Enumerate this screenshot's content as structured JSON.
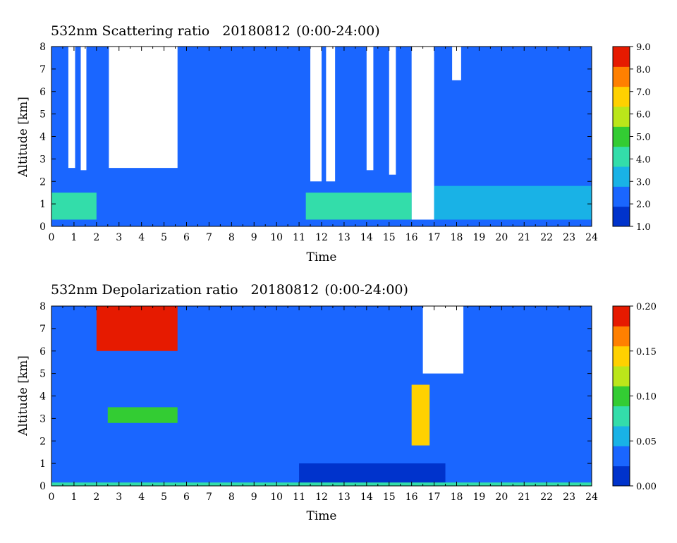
{
  "chart_data": [
    {
      "type": "heatmap",
      "title": "532nm Scattering ratio",
      "date": "20180812",
      "time_range": "(0:00-24:00)",
      "xlabel": "Time",
      "ylabel": "Altitude [km]",
      "xlim": [
        0,
        24
      ],
      "ylim": [
        0,
        8
      ],
      "x_ticks": [
        "0",
        "1",
        "2",
        "3",
        "4",
        "5",
        "6",
        "7",
        "8",
        "9",
        "10",
        "11",
        "12",
        "13",
        "14",
        "15",
        "16",
        "17",
        "18",
        "19",
        "20",
        "21",
        "22",
        "23",
        "24"
      ],
      "y_ticks": [
        "0",
        "1",
        "2",
        "3",
        "4",
        "5",
        "6",
        "7",
        "8"
      ],
      "colorbar": {
        "range": [
          1.0,
          9.0
        ],
        "ticks": [
          "1.0",
          "2.0",
          "3.0",
          "4.0",
          "5.0",
          "6.0",
          "7.0",
          "8.0",
          "9.0"
        ],
        "colors": [
          "#0033cc",
          "#1a66ff",
          "#19b2e6",
          "#33ddaa",
          "#33cc33",
          "#bbe61a",
          "#ffd100",
          "#ff8000",
          "#e61a00"
        ]
      },
      "background_value": 2.0,
      "features": [
        {
          "kind": "cloud_saturated",
          "x": [
            0.75,
            1.05
          ],
          "y": [
            2.6,
            8.0
          ],
          "value": 9.5
        },
        {
          "kind": "cloud_saturated",
          "x": [
            1.3,
            1.55
          ],
          "y": [
            2.5,
            8.0
          ],
          "value": 9.5
        },
        {
          "kind": "cloud_saturated",
          "x": [
            2.55,
            5.6
          ],
          "y": [
            2.6,
            8.0
          ],
          "value": 9.5
        },
        {
          "kind": "cloud_saturated",
          "x": [
            11.5,
            12.0
          ],
          "y": [
            2.0,
            8.0
          ],
          "value": 9.5
        },
        {
          "kind": "cloud_saturated",
          "x": [
            12.2,
            12.6
          ],
          "y": [
            2.0,
            8.0
          ],
          "value": 9.5
        },
        {
          "kind": "cloud_saturated",
          "x": [
            14.0,
            14.3
          ],
          "y": [
            2.5,
            8.0
          ],
          "value": 9.5
        },
        {
          "kind": "cloud_saturated",
          "x": [
            15.0,
            15.3
          ],
          "y": [
            2.3,
            8.0
          ],
          "value": 9.5
        },
        {
          "kind": "cloud_saturated",
          "x": [
            16.0,
            17.0
          ],
          "y": [
            0.3,
            8.0
          ],
          "value": 9.5
        },
        {
          "kind": "cloud_saturated",
          "x": [
            17.8,
            18.2
          ],
          "y": [
            6.5,
            8.0
          ],
          "value": 9.5
        },
        {
          "kind": "aerosol_layer",
          "x": [
            0,
            2.0
          ],
          "y": [
            0.3,
            1.5
          ],
          "value": 4.0
        },
        {
          "kind": "aerosol_layer",
          "x": [
            11.3,
            16.0
          ],
          "y": [
            0.3,
            1.5
          ],
          "value": 4.5
        },
        {
          "kind": "aerosol_layer",
          "x": [
            17.0,
            24.0
          ],
          "y": [
            0.3,
            1.8
          ],
          "value": 3.3
        }
      ]
    },
    {
      "type": "heatmap",
      "title": "532nm Depolarization ratio",
      "date": "20180812",
      "time_range": "(0:00-24:00)",
      "xlabel": "Time",
      "ylabel": "Altitude [km]",
      "xlim": [
        0,
        24
      ],
      "ylim": [
        0,
        8
      ],
      "x_ticks": [
        "0",
        "1",
        "2",
        "3",
        "4",
        "5",
        "6",
        "7",
        "8",
        "9",
        "10",
        "11",
        "12",
        "13",
        "14",
        "15",
        "16",
        "17",
        "18",
        "19",
        "20",
        "21",
        "22",
        "23",
        "24"
      ],
      "y_ticks": [
        "0",
        "1",
        "2",
        "3",
        "4",
        "5",
        "6",
        "7",
        "8"
      ],
      "colorbar": {
        "range": [
          0.0,
          0.2
        ],
        "ticks": [
          "0.00",
          "0.05",
          "0.10",
          "0.15",
          "0.20"
        ],
        "colors": [
          "#0033cc",
          "#1a66ff",
          "#19b2e6",
          "#33ddaa",
          "#33cc33",
          "#bbe61a",
          "#ffd100",
          "#ff8000",
          "#e61a00"
        ]
      },
      "background_value": 0.03,
      "features": [
        {
          "kind": "high_depol",
          "x": [
            2.0,
            5.6
          ],
          "y": [
            6.0,
            8.0
          ],
          "value": 0.18
        },
        {
          "kind": "cloud_base_depol",
          "x": [
            2.5,
            5.6
          ],
          "y": [
            2.8,
            3.5
          ],
          "value": 0.09
        },
        {
          "kind": "cloud_saturated",
          "x": [
            16.5,
            18.3
          ],
          "y": [
            5.0,
            8.0
          ],
          "value": 0.25
        },
        {
          "kind": "high_depol",
          "x": [
            16.0,
            16.8
          ],
          "y": [
            1.8,
            4.5
          ],
          "value": 0.14
        },
        {
          "kind": "low_depol",
          "x": [
            11.0,
            17.5
          ],
          "y": [
            0.0,
            1.0
          ],
          "value": 0.01
        },
        {
          "kind": "surface_layer",
          "x": [
            0,
            24
          ],
          "y": [
            0.0,
            0.15
          ],
          "value": 0.08
        }
      ]
    }
  ]
}
